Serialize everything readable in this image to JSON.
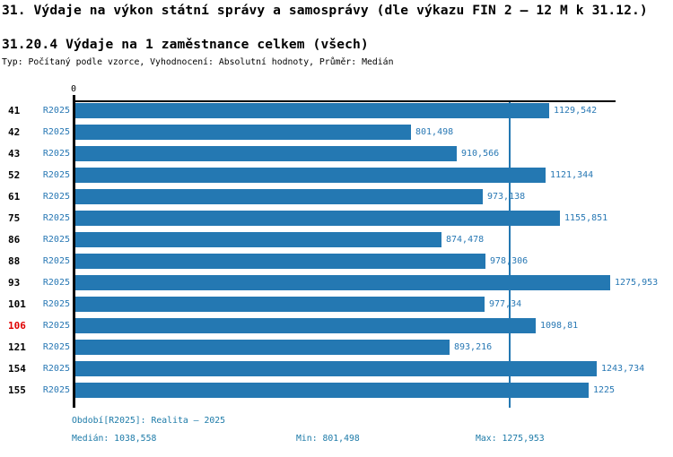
{
  "header": {
    "title": "31. Výdaje na výkon státní správy a samosprávy (dle výkazu FIN 2 – 12 M k 31.12.)",
    "subtitle": "31.20.4 Výdaje na 1 zaměstnance celkem (všech)",
    "meta": "Typ: Počítaný podle vzorce, Vyhodnocení: Absolutní hodnoty, Průměr: Medián"
  },
  "colors": {
    "bar": "#2478b2",
    "label_blue": "#2878b4",
    "footer_blue": "#1c7aa8",
    "highlight_red": "#e00000",
    "axis_black": "#000000"
  },
  "chart_data": {
    "type": "bar",
    "orientation": "horizontal",
    "title": "31.20.4 Výdaje na 1 zaměstnance celkem (všech)",
    "categories": [
      "41",
      "42",
      "43",
      "52",
      "61",
      "75",
      "86",
      "88",
      "93",
      "101",
      "106",
      "121",
      "154",
      "155"
    ],
    "series": [
      {
        "name": "R2025",
        "values": [
          1129.542,
          801.498,
          910.566,
          1121.344,
          973.138,
          1155.851,
          874.478,
          978.306,
          1275.953,
          977.34,
          1098.81,
          893.216,
          1243.734,
          1225
        ]
      }
    ],
    "value_labels": [
      "1129,542",
      "801,498",
      "910,566",
      "1121,344",
      "973,138",
      "1155,851",
      "874,478",
      "978,306",
      "1275,953",
      "977,34",
      "1098,81",
      "893,216",
      "1243,734",
      "1225"
    ],
    "highlighted_category": "106",
    "median": 1038.558,
    "min": 801.498,
    "max": 1275.953,
    "xlim": [
      0,
      1289
    ],
    "x_zero_label": "0",
    "grid": false,
    "median_line": true
  },
  "footer": {
    "period": "Období[R2025]: Realita – 2025",
    "median": "Medián: 1038,558",
    "min": "Min: 801,498",
    "max": "Max: 1275,953"
  }
}
